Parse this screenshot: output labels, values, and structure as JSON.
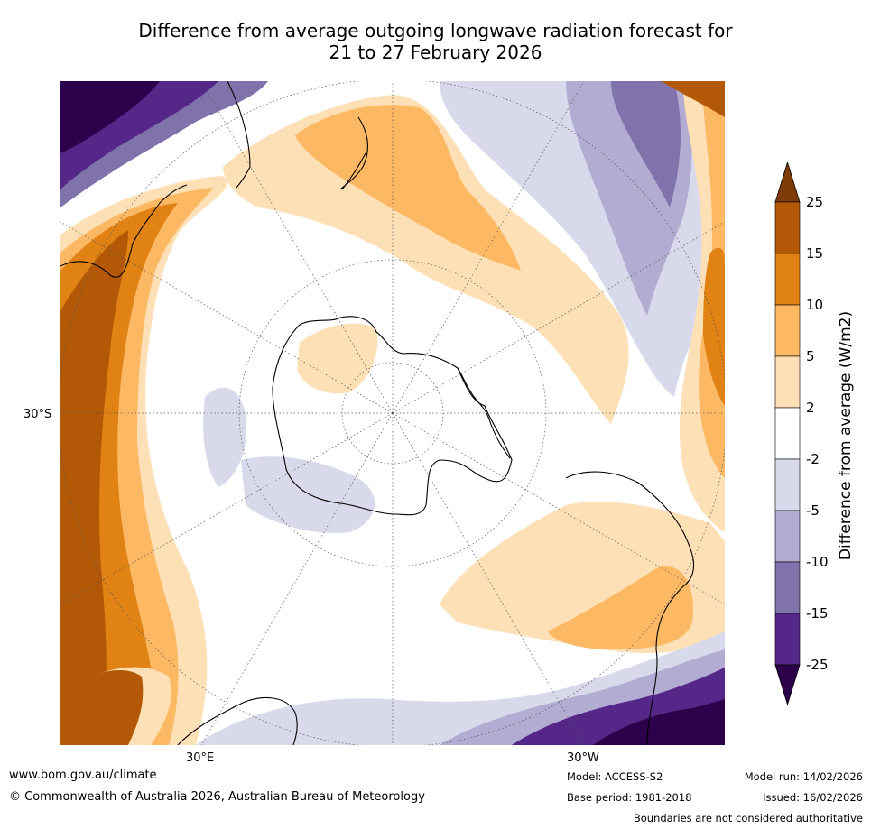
{
  "title": {
    "line1": "Difference from average outgoing longwave radiation forecast for",
    "line2": "21 to 27 February 2026"
  },
  "map": {
    "projection": "south-polar-stereographic",
    "lat_label": "30°S",
    "lon_labels": [
      "30°E",
      "30°W"
    ]
  },
  "colorbar": {
    "title": "Difference from average (W/m2)",
    "levels": [
      "25",
      "15",
      "10",
      "5",
      "2",
      "-2",
      "-5",
      "-10",
      "-15",
      "-25"
    ],
    "colors": [
      "#7f3b08",
      "#b35806",
      "#e08214",
      "#fdb863",
      "#fee0b6",
      "#ffffff",
      "#d8daeb",
      "#b2abd2",
      "#8073ac",
      "#542788",
      "#2d004b"
    ]
  },
  "footer": {
    "url": "www.bom.gov.au/climate",
    "copyright": "© Commonwealth of Australia 2026, Australian Bureau of Meteorology",
    "model": "Model: ACCESS-S2",
    "base_period": "Base period: 1981-2018",
    "model_run": "Model run: 14/02/2026",
    "issued": "Issued: 16/02/2026",
    "disclaimer": "Boundaries are not considered authoritative"
  }
}
